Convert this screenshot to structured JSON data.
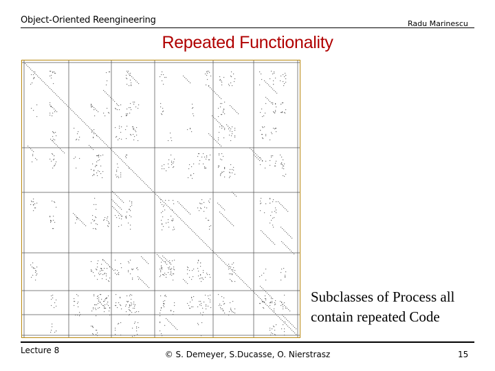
{
  "header": {
    "course_title": "Object-Oriented Reengineering",
    "author": "Radu Marinescu"
  },
  "slide": {
    "title": "Repeated Functionality",
    "caption": "Subclasses of Process all contain repeated Code"
  },
  "footer": {
    "lecture": "Lecture 8",
    "credits": "© S. Demeyer, S.Ducasse, O. Nierstrasz",
    "page_number": "15"
  },
  "colors": {
    "title": "#b00000",
    "matrix_border": "#b8860b",
    "grid_lines": "#555555",
    "dots": "#777777"
  }
}
